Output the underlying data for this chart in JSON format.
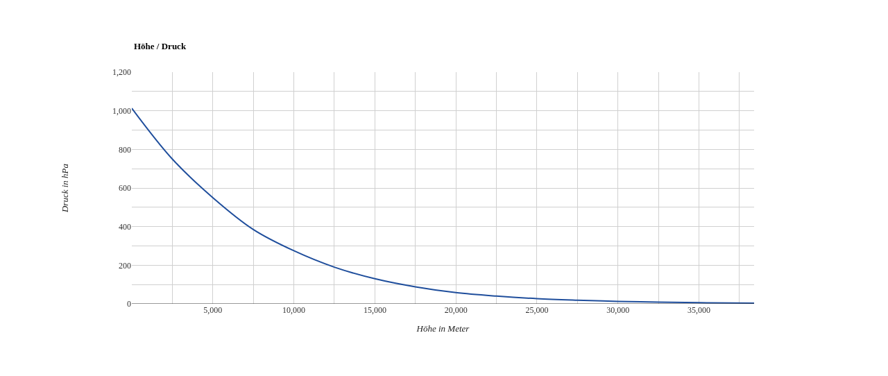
{
  "chart_data": {
    "type": "line",
    "title": "Höhe / Druck",
    "xlabel": "Höhe in Meter",
    "ylabel": "Druck in hPa",
    "x": [
      0,
      2500,
      5000,
      7500,
      10000,
      12500,
      15000,
      17500,
      20000,
      22500,
      25000,
      27500,
      30000,
      32500,
      35000,
      38400
    ],
    "series": [
      {
        "color": "#1f4e9c",
        "values": [
          1013,
          750,
          550,
          385,
          275,
          190,
          130,
          88,
          58,
          40,
          27,
          19,
          13,
          9,
          6,
          4
        ]
      }
    ],
    "xlim": [
      0,
      38400
    ],
    "xticks": [
      {
        "value": 2500,
        "label": null
      },
      {
        "value": 5000,
        "label": "5,000"
      },
      {
        "value": 7500,
        "label": null
      },
      {
        "value": 10000,
        "label": "10,000"
      },
      {
        "value": 12500,
        "label": null
      },
      {
        "value": 15000,
        "label": "15,000"
      },
      {
        "value": 17500,
        "label": null
      },
      {
        "value": 20000,
        "label": "20,000"
      },
      {
        "value": 22500,
        "label": null
      },
      {
        "value": 25000,
        "label": "25,000"
      },
      {
        "value": 27500,
        "label": null
      },
      {
        "value": 30000,
        "label": "30,000"
      },
      {
        "value": 32500,
        "label": null
      },
      {
        "value": 35000,
        "label": "35,000"
      },
      {
        "value": 37500,
        "label": null
      }
    ],
    "ylim": [
      0,
      1200
    ],
    "yticks": [
      0,
      {
        "value": 100,
        "label": null
      },
      200,
      {
        "value": 300,
        "label": null
      },
      400,
      {
        "value": 500,
        "label": null
      },
      600,
      {
        "value": 700,
        "label": null
      },
      800,
      {
        "value": 900,
        "label": null
      },
      {
        "value": 1000,
        "label": "1,000"
      },
      {
        "value": 1100,
        "label": null
      },
      {
        "value": 1200,
        "label": "1,200"
      }
    ],
    "grid": true,
    "marker": "none",
    "line_style": "solid"
  }
}
